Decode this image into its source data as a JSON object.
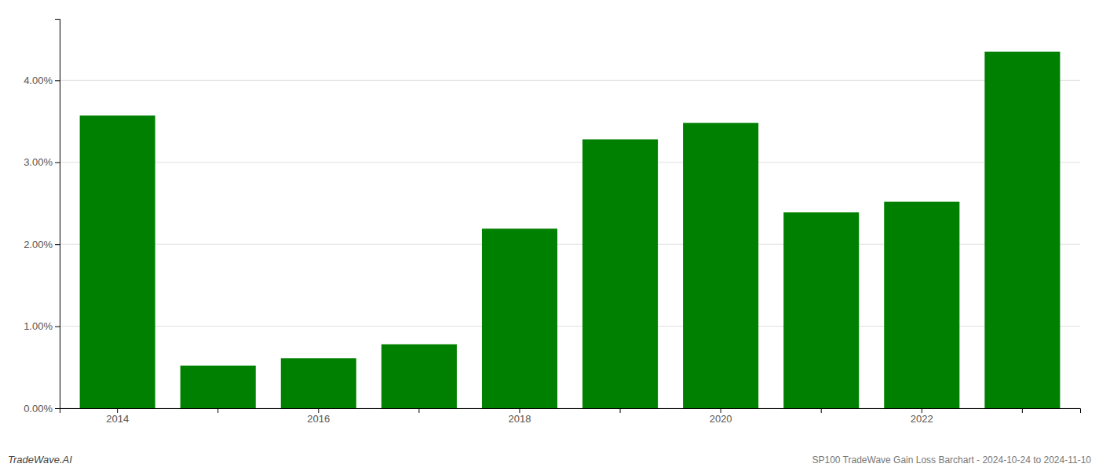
{
  "chart_data": {
    "type": "bar",
    "categories": [
      "2014",
      null,
      "2016",
      null,
      "2018",
      null,
      "2020",
      null,
      "2022",
      null
    ],
    "values": [
      3.57,
      0.52,
      0.61,
      0.78,
      2.19,
      3.28,
      3.48,
      2.39,
      2.52,
      4.35
    ],
    "color": "#008000",
    "ylim": [
      0,
      4.75
    ],
    "yticks": [
      {
        "value": 0.0,
        "label": "0.00%"
      },
      {
        "value": 1.0,
        "label": "1.00%"
      },
      {
        "value": 2.0,
        "label": "2.00%"
      },
      {
        "value": 3.0,
        "label": "3.00%"
      },
      {
        "value": 4.0,
        "label": "4.00%"
      }
    ],
    "grid": true,
    "annotations": [
      "TradeWave.AI",
      "SP100 TradeWave Gain Loss Barchart - 2024-10-24 to 2024-11-10"
    ]
  }
}
